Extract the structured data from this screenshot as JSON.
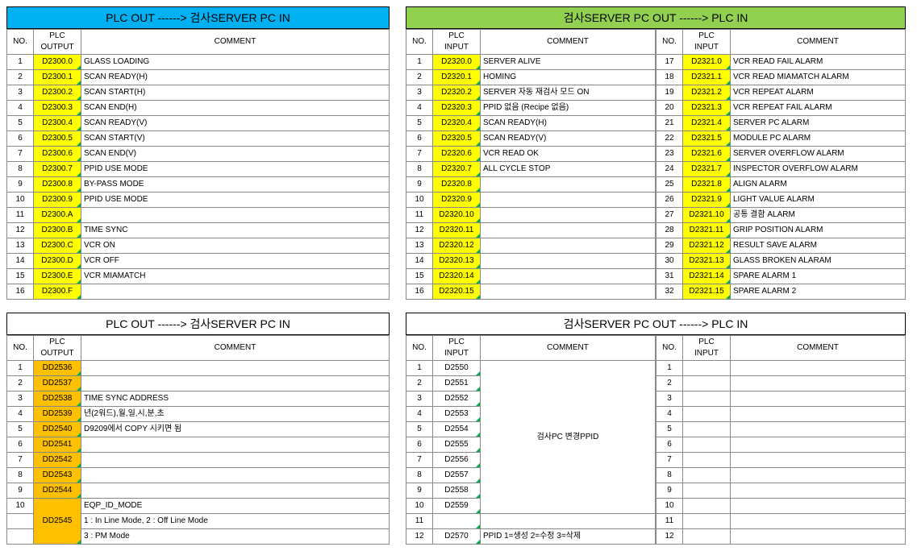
{
  "panelA": {
    "title": "PLC OUT ------> 검사SERVER PC IN",
    "headers": {
      "no": "NO.",
      "plc": "PLC\nOUTPUT",
      "comment": "COMMENT"
    },
    "rows": [
      {
        "no": 1,
        "plc": "D2300.0",
        "c": "GLASS LOADING"
      },
      {
        "no": 2,
        "plc": "D2300.1",
        "c": "SCAN READY(H)"
      },
      {
        "no": 3,
        "plc": "D2300.2",
        "c": "SCAN START(H)"
      },
      {
        "no": 4,
        "plc": "D2300.3",
        "c": "SCAN END(H)"
      },
      {
        "no": 5,
        "plc": "D2300.4",
        "c": "SCAN READY(V)"
      },
      {
        "no": 6,
        "plc": "D2300.5",
        "c": "SCAN START(V)"
      },
      {
        "no": 7,
        "plc": "D2300.6",
        "c": "SCAN END(V)"
      },
      {
        "no": 8,
        "plc": "D2300.7",
        "c": "PPID USE MODE"
      },
      {
        "no": 9,
        "plc": "D2300.8",
        "c": "BY-PASS MODE"
      },
      {
        "no": 10,
        "plc": "D2300.9",
        "c": "PPID USE MODE"
      },
      {
        "no": 11,
        "plc": "D2300.A",
        "c": ""
      },
      {
        "no": 12,
        "plc": "D2300.B",
        "c": "TIME SYNC"
      },
      {
        "no": 13,
        "plc": "D2300.C",
        "c": "VCR ON"
      },
      {
        "no": 14,
        "plc": "D2300.D",
        "c": "VCR OFF"
      },
      {
        "no": 15,
        "plc": "D2300.E",
        "c": "VCR MIAMATCH"
      },
      {
        "no": 16,
        "plc": "D2300.F",
        "c": ""
      }
    ]
  },
  "panelB": {
    "title": "검사SERVER PC OUT ------> PLC IN",
    "headers": {
      "no": "NO.",
      "plc": "PLC\nINPUT",
      "comment": "COMMENT"
    },
    "left": [
      {
        "no": 1,
        "plc": "D2320.0",
        "c": "SERVER ALIVE"
      },
      {
        "no": 2,
        "plc": "D2320.1",
        "c": "HOMING"
      },
      {
        "no": 3,
        "plc": "D2320.2",
        "c": "SERVER 자동 재검사 모드 ON"
      },
      {
        "no": 4,
        "plc": "D2320.3",
        "c": "PPID 없음 (Recipe 없음)"
      },
      {
        "no": 5,
        "plc": "D2320.4",
        "c": "SCAN READY(H)"
      },
      {
        "no": 6,
        "plc": "D2320.5",
        "c": "SCAN READY(V)"
      },
      {
        "no": 7,
        "plc": "D2320.6",
        "c": "VCR READ OK"
      },
      {
        "no": 8,
        "plc": "D2320.7",
        "c": "ALL CYCLE STOP"
      },
      {
        "no": 9,
        "plc": "D2320.8",
        "c": ""
      },
      {
        "no": 10,
        "plc": "D2320.9",
        "c": ""
      },
      {
        "no": 11,
        "plc": "D2320.10",
        "c": ""
      },
      {
        "no": 12,
        "plc": "D2320.11",
        "c": ""
      },
      {
        "no": 13,
        "plc": "D2320.12",
        "c": ""
      },
      {
        "no": 14,
        "plc": "D2320.13",
        "c": ""
      },
      {
        "no": 15,
        "plc": "D2320.14",
        "c": ""
      },
      {
        "no": 16,
        "plc": "D2320.15",
        "c": ""
      }
    ],
    "right": [
      {
        "no": 17,
        "plc": "D2321.0",
        "c": "VCR READ FAIL ALARM"
      },
      {
        "no": 18,
        "plc": "D2321.1",
        "c": "VCR READ MIAMATCH ALARM"
      },
      {
        "no": 19,
        "plc": "D2321.2",
        "c": "VCR REPEAT ALARM"
      },
      {
        "no": 20,
        "plc": "D2321.3",
        "c": "VCR REPEAT FAIL ALARM"
      },
      {
        "no": 21,
        "plc": "D2321.4",
        "c": "SERVER PC ALARM"
      },
      {
        "no": 22,
        "plc": "D2321.5",
        "c": "MODULE PC ALARM"
      },
      {
        "no": 23,
        "plc": "D2321.6",
        "c": "SERVER OVERFLOW ALARM"
      },
      {
        "no": 24,
        "plc": "D2321.7",
        "c": "INSPECTOR OVERFLOW ALARM"
      },
      {
        "no": 25,
        "plc": "D2321.8",
        "c": "ALIGN ALARM"
      },
      {
        "no": 26,
        "plc": "D2321.9",
        "c": "LIGHT VALUE ALARM"
      },
      {
        "no": 27,
        "plc": "D2321.10",
        "c": "공통 결함 ALARM"
      },
      {
        "no": 28,
        "plc": "D2321.11",
        "c": "GRIP POSITION ALARM"
      },
      {
        "no": 29,
        "plc": "D2321.12",
        "c": "RESULT SAVE ALARM"
      },
      {
        "no": 30,
        "plc": "D2321.13",
        "c": "GLASS BROKEN ALARAM"
      },
      {
        "no": 31,
        "plc": "D2321.14",
        "c": "SPARE ALARM 1"
      },
      {
        "no": 32,
        "plc": "D2321.15",
        "c": "SPARE ALARM 2"
      }
    ]
  },
  "panelC": {
    "title": "PLC OUT ------> 검사SERVER PC IN",
    "headers": {
      "no": "NO.",
      "plc": "PLC\nOUTPUT",
      "comment": "COMMENT"
    },
    "rows": [
      {
        "no": 1,
        "plc": "DD2536",
        "c": ""
      },
      {
        "no": 2,
        "plc": "DD2537",
        "c": ""
      },
      {
        "no": 3,
        "plc": "DD2538",
        "c": "TIME SYNC ADDRESS"
      },
      {
        "no": 4,
        "plc": "DD2539",
        "c": "년(2워드),월,일,시,분,초"
      },
      {
        "no": 5,
        "plc": "DD2540",
        "c": "D9209에서 COPY 시키면 됨"
      },
      {
        "no": 6,
        "plc": "DD2541",
        "c": ""
      },
      {
        "no": 7,
        "plc": "DD2542",
        "c": ""
      },
      {
        "no": 8,
        "plc": "DD2543",
        "c": ""
      },
      {
        "no": 9,
        "plc": "DD2544",
        "c": ""
      }
    ],
    "row10": {
      "no": 10,
      "plc": "DD2545",
      "c1": "EQP_ID_MODE",
      "c2": "1 : In Line Mode, 2 : Off Line Mode",
      "c3": "3 : PM Mode"
    }
  },
  "panelD": {
    "title": "검사SERVER PC OUT ------> PLC IN",
    "headers": {
      "no": "NO.",
      "plc": "PLC\nINPUT",
      "comment": "COMMENT"
    },
    "left": [
      {
        "no": 1,
        "plc": "D2550",
        "c": "검사PC  변경PPID"
      },
      {
        "no": 2,
        "plc": "D2551"
      },
      {
        "no": 3,
        "plc": "D2552"
      },
      {
        "no": 4,
        "plc": "D2553"
      },
      {
        "no": 5,
        "plc": "D2554"
      },
      {
        "no": 6,
        "plc": "D2555"
      },
      {
        "no": 7,
        "plc": "D2556"
      },
      {
        "no": 8,
        "plc": "D2557"
      },
      {
        "no": 9,
        "plc": "D2558"
      },
      {
        "no": 10,
        "plc": "D2559"
      },
      {
        "no": 11,
        "plc": ""
      },
      {
        "no": 12,
        "plc": "D2570",
        "c": "PPID   1=생성  2=수정  3=삭제"
      }
    ],
    "right": [
      {
        "no": 1
      },
      {
        "no": 2
      },
      {
        "no": 3
      },
      {
        "no": 4
      },
      {
        "no": 5
      },
      {
        "no": 6
      },
      {
        "no": 7
      },
      {
        "no": 8
      },
      {
        "no": 9
      },
      {
        "no": 10
      },
      {
        "no": 11
      },
      {
        "no": 12
      }
    ]
  }
}
